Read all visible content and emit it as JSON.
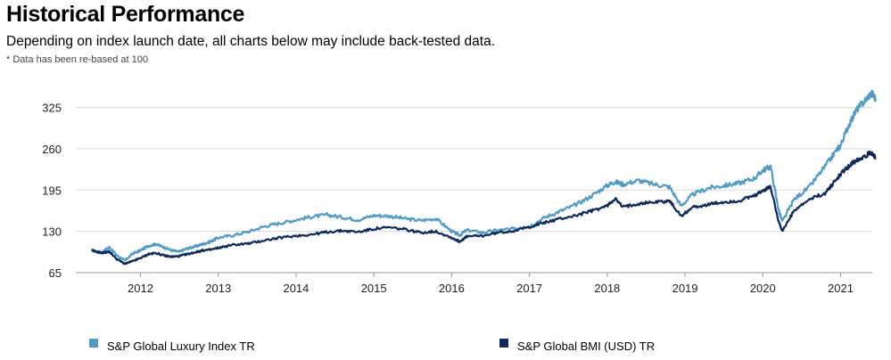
{
  "header": {
    "title": "Historical Performance",
    "subtitle": "Depending on index launch date, all charts below may include back-tested data.",
    "note": "* Data has been re-based at 100"
  },
  "colors": {
    "luxury": "#4f9cc6",
    "bmi": "#0d2a5c",
    "grid": "#d9d9d9"
  },
  "chart_data": {
    "type": "line",
    "title": "Historical Performance",
    "xlabel": "",
    "ylabel": "",
    "xlim": [
      2011.3,
      2021.55
    ],
    "ylim": [
      65,
      355
    ],
    "y_ticks": [
      "65",
      "130",
      "195",
      "260",
      "325"
    ],
    "x_ticks": [
      "2012",
      "2013",
      "2014",
      "2015",
      "2016",
      "2017",
      "2018",
      "2019",
      "2020",
      "2021"
    ],
    "grid": "horizontal",
    "legend_position": "bottom",
    "series": [
      {
        "name": "S&P Global Luxury Index TR",
        "x": [
          2011.37,
          2011.5,
          2011.6,
          2011.7,
          2011.8,
          2011.9,
          2012.0,
          2012.1,
          2012.2,
          2012.3,
          2012.4,
          2012.5,
          2012.6,
          2012.7,
          2012.8,
          2012.9,
          2013.0,
          2013.2,
          2013.4,
          2013.6,
          2013.8,
          2014.0,
          2014.2,
          2014.4,
          2014.6,
          2014.8,
          2015.0,
          2015.2,
          2015.4,
          2015.6,
          2015.8,
          2016.0,
          2016.1,
          2016.2,
          2016.4,
          2016.6,
          2016.8,
          2017.0,
          2017.2,
          2017.4,
          2017.6,
          2017.8,
          2018.0,
          2018.1,
          2018.2,
          2018.4,
          2018.6,
          2018.8,
          2018.95,
          2019.1,
          2019.3,
          2019.5,
          2019.7,
          2019.9,
          2020.0,
          2020.1,
          2020.2,
          2020.25,
          2020.4,
          2020.6,
          2020.8,
          2020.95,
          2021.0,
          2021.1,
          2021.2,
          2021.3,
          2021.4,
          2021.45
        ],
        "values": [
          100,
          97,
          105,
          92,
          84,
          95,
          100,
          107,
          110,
          105,
          100,
          98,
          103,
          106,
          110,
          114,
          120,
          124,
          130,
          138,
          143,
          148,
          153,
          156,
          152,
          148,
          155,
          154,
          150,
          147,
          150,
          130,
          124,
          132,
          128,
          132,
          134,
          138,
          152,
          162,
          172,
          186,
          202,
          208,
          204,
          210,
          204,
          200,
          170,
          188,
          198,
          202,
          206,
          214,
          226,
          232,
          165,
          145,
          180,
          200,
          232,
          258,
          265,
          296,
          320,
          334,
          348,
          338
        ]
      },
      {
        "name": "S&P Global BMI (USD) TR",
        "x": [
          2011.37,
          2011.5,
          2011.6,
          2011.7,
          2011.8,
          2011.9,
          2012.0,
          2012.1,
          2012.2,
          2012.3,
          2012.4,
          2012.5,
          2012.6,
          2012.7,
          2012.8,
          2012.9,
          2013.0,
          2013.2,
          2013.4,
          2013.6,
          2013.8,
          2014.0,
          2014.2,
          2014.4,
          2014.6,
          2014.8,
          2015.0,
          2015.2,
          2015.4,
          2015.6,
          2015.8,
          2016.0,
          2016.1,
          2016.2,
          2016.4,
          2016.6,
          2016.8,
          2017.0,
          2017.2,
          2017.4,
          2017.6,
          2017.8,
          2018.0,
          2018.1,
          2018.2,
          2018.4,
          2018.6,
          2018.8,
          2018.95,
          2019.1,
          2019.3,
          2019.5,
          2019.7,
          2019.9,
          2020.0,
          2020.1,
          2020.2,
          2020.25,
          2020.4,
          2020.6,
          2020.8,
          2020.95,
          2021.0,
          2021.1,
          2021.2,
          2021.3,
          2021.4,
          2021.45
        ],
        "values": [
          100,
          96,
          98,
          86,
          79,
          83,
          88,
          94,
          96,
          92,
          90,
          91,
          94,
          97,
          100,
          101,
          104,
          109,
          111,
          116,
          120,
          123,
          125,
          129,
          131,
          129,
          134,
          136,
          133,
          128,
          130,
          120,
          114,
          122,
          123,
          128,
          131,
          137,
          144,
          150,
          155,
          162,
          170,
          182,
          168,
          174,
          176,
          178,
          154,
          168,
          172,
          176,
          178,
          186,
          194,
          200,
          148,
          130,
          162,
          180,
          190,
          212,
          220,
          232,
          242,
          248,
          254,
          246
        ]
      }
    ]
  },
  "legend": {
    "items": [
      {
        "label": "S&P Global Luxury Index TR"
      },
      {
        "label": "S&P Global BMI (USD) TR"
      }
    ]
  }
}
